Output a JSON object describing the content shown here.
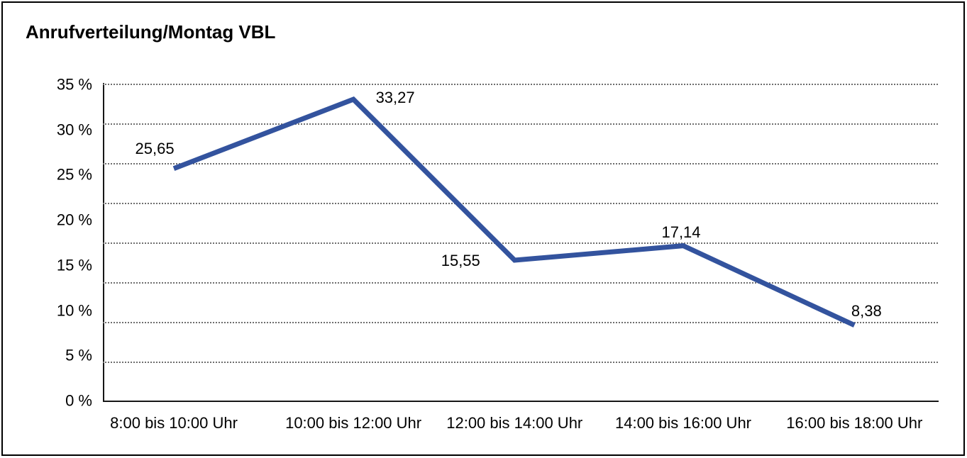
{
  "chart_data": {
    "type": "line",
    "title": "Anrufverteilung/Montag VBL",
    "categories": [
      "8:00 bis 10:00 Uhr",
      "10:00 bis 12:00 Uhr",
      "12:00 bis 14:00 Uhr",
      "14:00 bis 16:00 Uhr",
      "16:00 bis 18:00 Uhr"
    ],
    "values": [
      25.65,
      33.27,
      15.55,
      17.14,
      8.38
    ],
    "point_labels": [
      "25,65",
      "33,27",
      "15,55",
      "17,14",
      "8,38"
    ],
    "y_ticks": [
      "35 %",
      "30 %",
      "25 %",
      "20 %",
      "15 %",
      "10 %",
      "5 %",
      "0 %"
    ],
    "ylim": [
      0,
      35
    ],
    "xlabel": "",
    "ylabel": "",
    "legend": "none",
    "grid": "horizontal-dotted",
    "line_color": "#33539E",
    "axis_color": "#161616",
    "gridline_color": "#6e6e6e",
    "text_color": "#000000"
  }
}
